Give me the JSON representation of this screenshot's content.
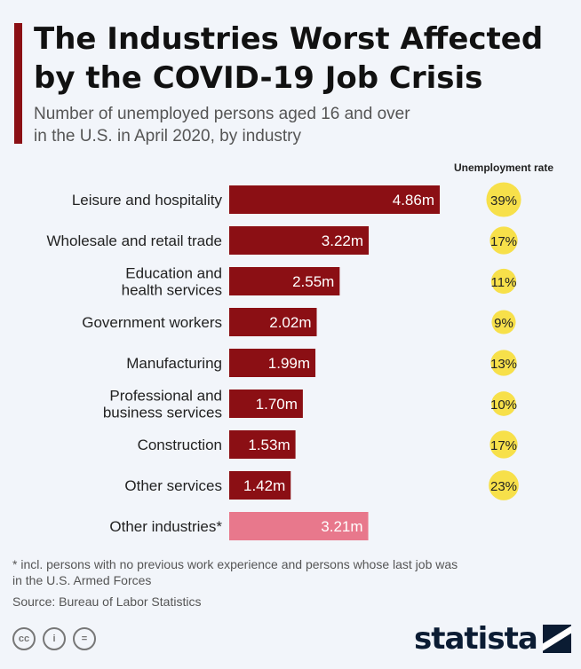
{
  "header": {
    "title_line1": "The Industries Worst Affected",
    "title_line2": "by the COVID-19 Job Crisis",
    "subtitle_line1": "Number of unemployed persons aged 16 and over",
    "subtitle_line2": "in the U.S. in April 2020, by industry",
    "accent_color": "#8b0f14"
  },
  "chart_data": {
    "type": "bar",
    "orientation": "horizontal",
    "categories": [
      [
        "Leisure and hospitality"
      ],
      [
        "Wholesale and retail trade"
      ],
      [
        "Education and",
        "health services"
      ],
      [
        "Government workers"
      ],
      [
        "Manufacturing"
      ],
      [
        "Professional and",
        "business services"
      ],
      [
        "Construction"
      ],
      [
        "Other services"
      ],
      [
        "Other industries*"
      ]
    ],
    "values": [
      4.86,
      3.22,
      2.55,
      2.02,
      1.99,
      1.7,
      1.53,
      1.42,
      3.21
    ],
    "value_labels": [
      "4.86m",
      "3.22m",
      "2.55m",
      "2.02m",
      "1.99m",
      "1.70m",
      "1.53m",
      "1.42m",
      "3.21m"
    ],
    "bar_colors": [
      "#8b0f14",
      "#8b0f14",
      "#8b0f14",
      "#8b0f14",
      "#8b0f14",
      "#8b0f14",
      "#8b0f14",
      "#8b0f14",
      "#e8788c"
    ],
    "unemployment_rate_header": "Unemployment rate",
    "unemployment_rates": [
      39,
      17,
      11,
      9,
      13,
      10,
      17,
      23,
      null
    ],
    "unemployment_rate_labels": [
      "39%",
      "17%",
      "11%",
      "9%",
      "13%",
      "10%",
      "17%",
      "23%",
      ""
    ],
    "rate_bubble_color": "#f7e04a",
    "xlim": [
      0,
      5
    ]
  },
  "footer": {
    "footnote_line1": "* incl. persons with no previous work experience and persons whose last job was",
    "footnote_line2": "in the U.S. Armed Forces",
    "source": "Source: Bureau of Labor Statistics",
    "license_icons": [
      "cc-icon",
      "by-icon",
      "nd-icon"
    ],
    "license_glyphs": [
      "cc",
      "i",
      "="
    ],
    "brand": "statista"
  }
}
